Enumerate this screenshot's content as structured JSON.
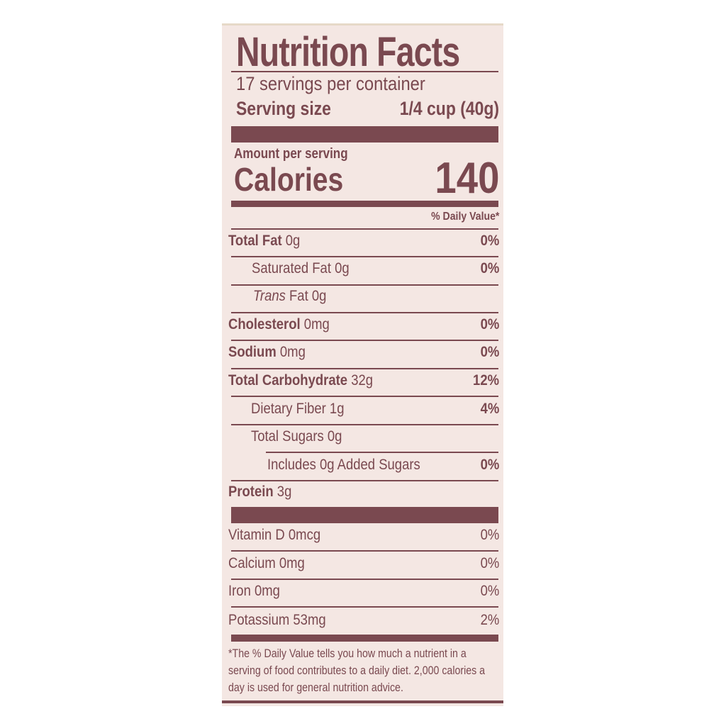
{
  "label": {
    "title": "Nutrition Facts",
    "servings": "17 servings per container",
    "serving_size_label": "Serving size",
    "serving_size_value": "1/4 cup (40g)",
    "amount_per_serving": "Amount per serving",
    "calories_label": "Calories",
    "calories_value": "140",
    "dv_header": "% Daily Value*",
    "nutrients": [
      {
        "name": "Total Fat",
        "amount": "0g",
        "dv": "0%"
      },
      {
        "name": "Saturated Fat",
        "amount": "0g",
        "dv": "0%"
      },
      {
        "name": "Trans",
        "amount": "Fat 0g",
        "dv": ""
      },
      {
        "name": "Cholesterol",
        "amount": "0mg",
        "dv": "0%"
      },
      {
        "name": "Sodium",
        "amount": "0mg",
        "dv": "0%"
      },
      {
        "name": "Total Carbohydrate",
        "amount": "32g",
        "dv": "12%"
      },
      {
        "name": "Dietary Fiber",
        "amount": "1g",
        "dv": "4%"
      },
      {
        "name": "Total Sugars",
        "amount": "0g",
        "dv": ""
      },
      {
        "name": "Includes 0g Added Sugars",
        "amount": "",
        "dv": "0%"
      },
      {
        "name": "Protein",
        "amount": "3g",
        "dv": ""
      }
    ],
    "vitamins": [
      {
        "name": "Vitamin D 0mcg",
        "dv": "0%"
      },
      {
        "name": "Calcium 0mg",
        "dv": "0%"
      },
      {
        "name": "Iron 0mg",
        "dv": "0%"
      },
      {
        "name": "Potassium 53mg",
        "dv": "2%"
      }
    ],
    "footnote": "*The % Daily Value tells you how much a nutrient in a serving of food contributes to a daily diet. 2,000 calories a day is used for general nutrition advice.",
    "colors": {
      "ink": "#7a4950",
      "panel": "#f4e7e3"
    }
  }
}
